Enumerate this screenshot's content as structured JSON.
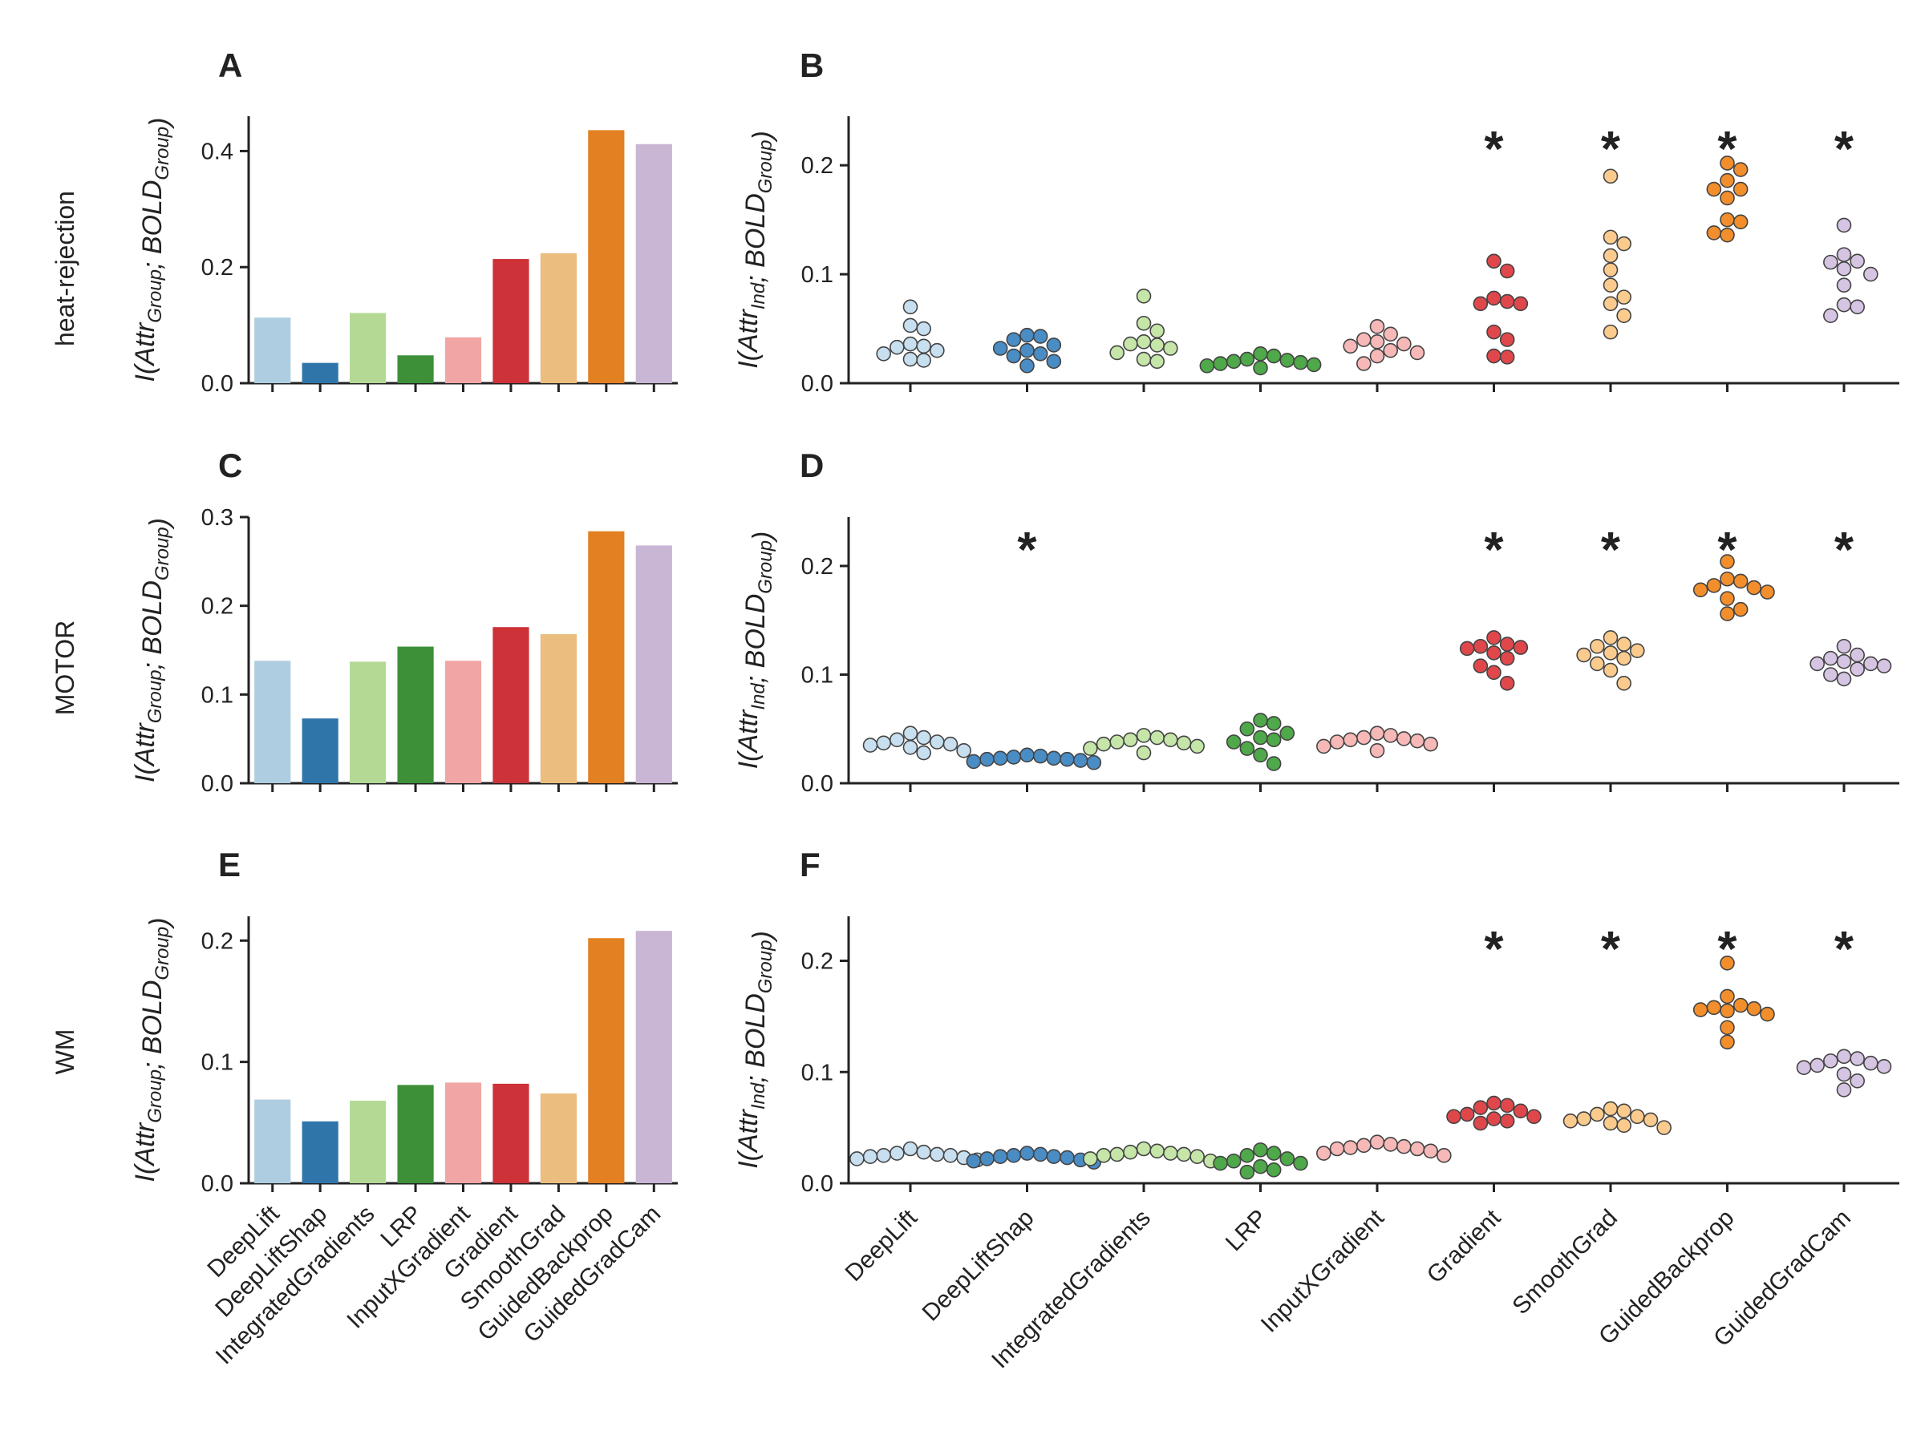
{
  "colors": {
    "DeepLift": "#afcde0",
    "DeepLiftShap": "#2f75aa",
    "IntegratedGradients": "#b3d995",
    "LRP": "#3d9038",
    "InputXGradient": "#f1a6a5",
    "Gradient": "#cc3237",
    "SmoothGrad": "#ebbd7f",
    "GuidedBackprop": "#e38022",
    "GuidedGradCam": "#c8b6d4"
  },
  "dot_colors": {
    "DeepLift": "#c8dff0",
    "DeepLiftShap": "#4a8cc4",
    "IntegratedGradients": "#c5e6a8",
    "LRP": "#4fa84a",
    "InputXGradient": "#f6b9b8",
    "Gradient": "#e0474b",
    "SmoothGrad": "#fbcb8e",
    "GuidedBackprop": "#f28f2c",
    "GuidedGradCam": "#d6c4e3"
  },
  "chart_data": [
    {
      "panel": "A",
      "type": "bar",
      "row_label": "heat-rejection",
      "ylabel": {
        "base": "I(Attr",
        "sub1": "Group",
        "mid": "; BOLD",
        "sub2": "Group",
        "end": ")"
      },
      "categories": [
        "DeepLift",
        "DeepLiftShap",
        "IntegratedGradients",
        "LRP",
        "InputXGradient",
        "Gradient",
        "SmoothGrad",
        "GuidedBackprop",
        "GuidedGradCam"
      ],
      "values": [
        0.113,
        0.035,
        0.121,
        0.048,
        0.079,
        0.214,
        0.224,
        0.436,
        0.412
      ],
      "ylim": [
        0,
        0.46
      ],
      "yticks": [
        0.0,
        0.2,
        0.4
      ],
      "ytick_labels": [
        "0.0",
        "0.2",
        "0.4"
      ]
    },
    {
      "panel": "B",
      "type": "scatter",
      "row_label": "heat-rejection",
      "ylabel": {
        "base": "I(Attr",
        "sub1": "Ind",
        "mid": "; BOLD",
        "sub2": "Group",
        "end": ")"
      },
      "categories": [
        "DeepLift",
        "DeepLiftShap",
        "IntegratedGradients",
        "LRP",
        "InputXGradient",
        "Gradient",
        "SmoothGrad",
        "GuidedBackprop",
        "GuidedGradCam"
      ],
      "points": [
        [
          0.07,
          0.053,
          0.05,
          0.036,
          0.033,
          0.034,
          0.027,
          0.022,
          0.021,
          0.03
        ],
        [
          0.044,
          0.043,
          0.04,
          0.035,
          0.032,
          0.027,
          0.025,
          0.02,
          0.016,
          0.03
        ],
        [
          0.08,
          0.055,
          0.048,
          0.038,
          0.035,
          0.032,
          0.028,
          0.022,
          0.02,
          0.036
        ],
        [
          0.027,
          0.025,
          0.022,
          0.02,
          0.018,
          0.016,
          0.014,
          0.021,
          0.019,
          0.017
        ],
        [
          0.052,
          0.045,
          0.04,
          0.036,
          0.034,
          0.03,
          0.028,
          0.025,
          0.018,
          0.038
        ],
        [
          0.112,
          0.103,
          0.078,
          0.075,
          0.073,
          0.073,
          0.047,
          0.04,
          0.025,
          0.024
        ],
        [
          0.19,
          0.134,
          0.128,
          0.117,
          0.104,
          0.09,
          0.079,
          0.073,
          0.062,
          0.047
        ],
        [
          0.202,
          0.196,
          0.186,
          0.178,
          0.17,
          0.15,
          0.148,
          0.138,
          0.136,
          0.178
        ],
        [
          0.145,
          0.118,
          0.112,
          0.111,
          0.105,
          0.1,
          0.09,
          0.072,
          0.07,
          0.062
        ]
      ],
      "ylim": [
        0,
        0.245
      ],
      "yticks": [
        0.0,
        0.1,
        0.2
      ],
      "ytick_labels": [
        "0.0",
        "0.1",
        "0.2"
      ],
      "significant": [
        false,
        false,
        false,
        false,
        false,
        true,
        true,
        true,
        true
      ],
      "marker": "*"
    },
    {
      "panel": "C",
      "type": "bar",
      "row_label": "MOTOR",
      "ylabel": {
        "base": "I(Attr",
        "sub1": "Group",
        "mid": "; BOLD",
        "sub2": "Group",
        "end": ")"
      },
      "categories": [
        "DeepLift",
        "DeepLiftShap",
        "IntegratedGradients",
        "LRP",
        "InputXGradient",
        "Gradient",
        "SmoothGrad",
        "GuidedBackprop",
        "GuidedGradCam"
      ],
      "values": [
        0.138,
        0.073,
        0.137,
        0.154,
        0.138,
        0.176,
        0.168,
        0.284,
        0.268
      ],
      "ylim": [
        0,
        0.3
      ],
      "yticks": [
        0.0,
        0.1,
        0.2,
        0.3
      ],
      "ytick_labels": [
        "0.0",
        "0.1",
        "0.2",
        "0.3"
      ]
    },
    {
      "panel": "D",
      "type": "scatter",
      "row_label": "MOTOR",
      "ylabel": {
        "base": "I(Attr",
        "sub1": "Ind",
        "mid": "; BOLD",
        "sub2": "Group",
        "end": ")"
      },
      "categories": [
        "DeepLift",
        "DeepLiftShap",
        "IntegratedGradients",
        "LRP",
        "InputXGradient",
        "Gradient",
        "SmoothGrad",
        "GuidedBackprop",
        "GuidedGradCam"
      ],
      "points": [
        [
          0.046,
          0.042,
          0.04,
          0.038,
          0.036,
          0.035,
          0.033,
          0.03,
          0.028,
          0.037
        ],
        [
          0.026,
          0.025,
          0.024,
          0.023,
          0.022,
          0.022,
          0.021,
          0.02,
          0.019,
          0.023
        ],
        [
          0.044,
          0.042,
          0.04,
          0.038,
          0.037,
          0.036,
          0.034,
          0.032,
          0.028,
          0.04
        ],
        [
          0.058,
          0.055,
          0.05,
          0.046,
          0.042,
          0.038,
          0.032,
          0.026,
          0.018,
          0.04
        ],
        [
          0.046,
          0.044,
          0.042,
          0.04,
          0.039,
          0.038,
          0.036,
          0.034,
          0.03,
          0.041
        ],
        [
          0.134,
          0.128,
          0.126,
          0.125,
          0.12,
          0.115,
          0.108,
          0.102,
          0.092,
          0.124
        ],
        [
          0.134,
          0.128,
          0.126,
          0.122,
          0.12,
          0.115,
          0.11,
          0.104,
          0.092,
          0.118
        ],
        [
          0.204,
          0.188,
          0.186,
          0.182,
          0.18,
          0.178,
          0.17,
          0.16,
          0.156,
          0.176
        ],
        [
          0.126,
          0.118,
          0.115,
          0.112,
          0.11,
          0.108,
          0.105,
          0.1,
          0.096,
          0.11
        ]
      ],
      "ylim": [
        0,
        0.245
      ],
      "yticks": [
        0.0,
        0.1,
        0.2
      ],
      "ytick_labels": [
        "0.0",
        "0.1",
        "0.2"
      ],
      "significant": [
        false,
        true,
        false,
        false,
        false,
        true,
        true,
        true,
        true
      ],
      "marker": "*"
    },
    {
      "panel": "E",
      "type": "bar",
      "row_label": "WM",
      "ylabel": {
        "base": "I(Attr",
        "sub1": "Group",
        "mid": "; BOLD",
        "sub2": "Group",
        "end": ")"
      },
      "categories": [
        "DeepLift",
        "DeepLiftShap",
        "IntegratedGradients",
        "LRP",
        "InputXGradient",
        "Gradient",
        "SmoothGrad",
        "GuidedBackprop",
        "GuidedGradCam"
      ],
      "values": [
        0.069,
        0.051,
        0.068,
        0.081,
        0.083,
        0.082,
        0.074,
        0.202,
        0.208
      ],
      "ylim": [
        0,
        0.22
      ],
      "yticks": [
        0.0,
        0.1,
        0.2
      ],
      "ytick_labels": [
        "0.0",
        "0.1",
        "0.2"
      ]
    },
    {
      "panel": "F",
      "type": "scatter",
      "row_label": "WM",
      "ylabel": {
        "base": "I(Attr",
        "sub1": "Ind",
        "mid": "; BOLD",
        "sub2": "Group",
        "end": ")"
      },
      "categories": [
        "DeepLift",
        "DeepLiftShap",
        "IntegratedGradients",
        "LRP",
        "InputXGradient",
        "Gradient",
        "SmoothGrad",
        "GuidedBackprop",
        "GuidedGradCam"
      ],
      "points": [
        [
          0.031,
          0.028,
          0.027,
          0.026,
          0.025,
          0.024,
          0.023,
          0.022,
          0.021,
          0.025
        ],
        [
          0.027,
          0.026,
          0.025,
          0.024,
          0.023,
          0.022,
          0.021,
          0.02,
          0.019,
          0.024
        ],
        [
          0.031,
          0.029,
          0.028,
          0.027,
          0.026,
          0.025,
          0.024,
          0.022,
          0.02,
          0.026
        ],
        [
          0.03,
          0.027,
          0.025,
          0.022,
          0.02,
          0.018,
          0.015,
          0.012,
          0.01,
          0.018
        ],
        [
          0.037,
          0.035,
          0.034,
          0.033,
          0.032,
          0.031,
          0.029,
          0.027,
          0.025,
          0.031
        ],
        [
          0.072,
          0.07,
          0.068,
          0.065,
          0.062,
          0.06,
          0.058,
          0.056,
          0.054,
          0.06
        ],
        [
          0.067,
          0.065,
          0.062,
          0.06,
          0.058,
          0.056,
          0.054,
          0.052,
          0.05,
          0.057
        ],
        [
          0.198,
          0.168,
          0.16,
          0.158,
          0.156,
          0.155,
          0.152,
          0.14,
          0.127,
          0.157
        ],
        [
          0.114,
          0.112,
          0.11,
          0.108,
          0.106,
          0.104,
          0.098,
          0.092,
          0.084,
          0.105
        ]
      ],
      "ylim": [
        0,
        0.24
      ],
      "yticks": [
        0.0,
        0.1,
        0.2
      ],
      "ytick_labels": [
        "0.0",
        "0.1",
        "0.2"
      ],
      "significant": [
        false,
        false,
        false,
        false,
        false,
        true,
        true,
        true,
        true
      ],
      "marker": "*"
    }
  ]
}
